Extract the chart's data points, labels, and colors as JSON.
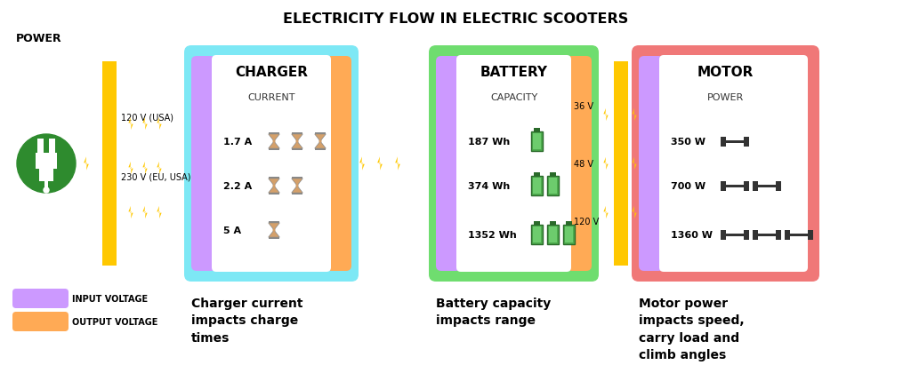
{
  "title": "ELECTRICITY FLOW IN ELECTRIC SCOOTERS",
  "title_fontsize": 11.5,
  "bg_color": "#ffffff",
  "colors": {
    "charger_box": "#7de8f5",
    "battery_box": "#6fdd6f",
    "motor_box": "#f07878",
    "purple_bar": "#cc99ff",
    "orange_bar": "#ffaa55",
    "yellow": "#ffc800",
    "green_circle": "#2e8b2e"
  },
  "power_label": "POWER",
  "charger_label": "CHARGER",
  "battery_label": "BATTERY",
  "motor_label": "MOTOR",
  "charger_sublabel": "CURRENT",
  "battery_sublabel": "CAPACITY",
  "motor_sublabel": "POWER",
  "input_voltages": [
    "120 V (USA)",
    "230 V (EU, USA)"
  ],
  "charger_currents": [
    "1.7 A",
    "2.2 A",
    "5 A"
  ],
  "battery_capacities": [
    "187 Wh",
    "374 Wh",
    "1352 Wh"
  ],
  "motor_voltages": [
    "36 V",
    "48 V",
    "120 V"
  ],
  "motor_powers": [
    "350 W",
    "700 W",
    "1360 W"
  ],
  "legend_items": [
    "INPUT VOLTAGE",
    "OUTPUT VOLTAGE"
  ],
  "captions": [
    "Charger current\nimpacts charge\ntimes",
    "Battery capacity\nimpacts range",
    "Motor power\nimpacts speed,\ncarry load and\nclimb angles"
  ]
}
